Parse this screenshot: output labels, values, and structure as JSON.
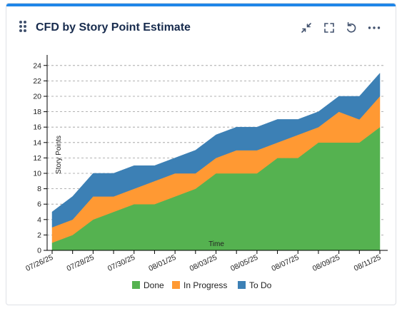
{
  "widget": {
    "title": "CFD by Story Point Estimate",
    "icons": [
      "drag-handle-icon",
      "collapse-icon",
      "fullscreen-icon",
      "refresh-icon",
      "more-icon"
    ]
  },
  "chart_data": {
    "type": "area",
    "stacked": true,
    "x": [
      "07/26/25",
      "07/27/25",
      "07/28/25",
      "07/29/25",
      "07/30/25",
      "07/31/25",
      "08/01/25",
      "08/02/25",
      "08/03/25",
      "08/04/25",
      "08/05/25",
      "08/06/25",
      "08/07/25",
      "08/08/25",
      "08/09/25",
      "08/10/25",
      "08/11/25"
    ],
    "xtick_labels": [
      "07/26/25",
      "07/28/25",
      "07/30/25",
      "08/01/25",
      "08/03/25",
      "08/05/25",
      "08/07/25",
      "08/09/25",
      "08/11/25"
    ],
    "series": [
      {
        "name": "Done",
        "color": "#55b250",
        "values": [
          1,
          2,
          4,
          5,
          6,
          6,
          7,
          8,
          10,
          10,
          10,
          12,
          12,
          14,
          14,
          14,
          16
        ]
      },
      {
        "name": "In Progress",
        "color": "#ff9933",
        "values": [
          2,
          2,
          3,
          2,
          2,
          3,
          3,
          2,
          2,
          3,
          3,
          2,
          3,
          2,
          4,
          3,
          4
        ]
      },
      {
        "name": "To Do",
        "color": "#3c80b5",
        "values": [
          2,
          3,
          3,
          3,
          3,
          2,
          2,
          3,
          3,
          3,
          3,
          3,
          2,
          2,
          2,
          3,
          3
        ]
      }
    ],
    "xlabel": "Time",
    "ylabel": "Story Points",
    "ylim": [
      0,
      25
    ],
    "yticks": [
      0,
      2,
      4,
      6,
      8,
      10,
      12,
      14,
      16,
      18,
      20,
      22,
      24
    ],
    "grid": true,
    "legend": "bottom"
  }
}
